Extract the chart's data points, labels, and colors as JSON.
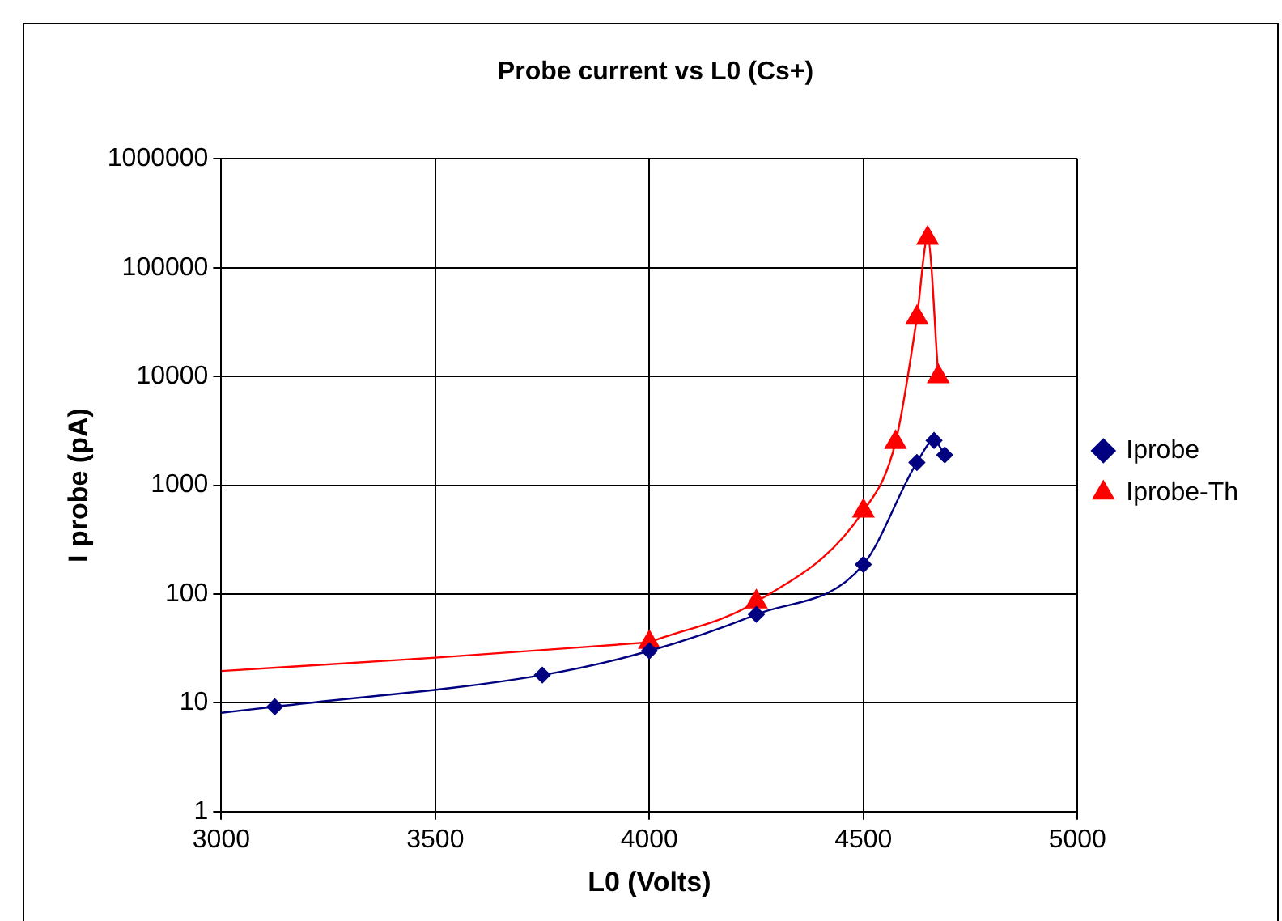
{
  "chart_data": {
    "type": "line",
    "title": "Probe current vs L0 (Cs+)",
    "xlabel": "L0 (Volts)",
    "ylabel": "I probe (pA)",
    "xlim": [
      3000,
      5000
    ],
    "xticks": [
      3000,
      3500,
      4000,
      4500,
      5000
    ],
    "ylim": [
      1,
      1000000
    ],
    "yticks": [
      1,
      10,
      100,
      1000,
      10000,
      100000,
      1000000
    ],
    "log": "y",
    "grid": true,
    "legend": "right",
    "line_style": "solid",
    "series": [
      {
        "name": "Iprobe",
        "color": "#000080",
        "marker": "diamond",
        "x": [
          3125,
          3750,
          4000,
          4250,
          4500,
          4625,
          4665,
          4690
        ],
        "values": [
          9.2,
          18,
          30,
          65,
          187,
          1620,
          2580,
          1900
        ]
      },
      {
        "name": "Iprobe-Th",
        "color": "#ff0000",
        "marker": "triangle",
        "x": [
          4000,
          4250,
          4500,
          4575,
          4625,
          4650,
          4675
        ],
        "values": [
          36,
          85,
          580,
          2480,
          35000,
          187000,
          10000
        ]
      },
      {
        "color": "#000080",
        "marker": "none",
        "x": [
          3000,
          3125
        ],
        "values": [
          8.1,
          9.2
        ]
      },
      {
        "color": "#ff0000",
        "marker": "none",
        "x": [
          3000,
          3500,
          4000
        ],
        "values": [
          19.6,
          26,
          36
        ]
      }
    ]
  }
}
